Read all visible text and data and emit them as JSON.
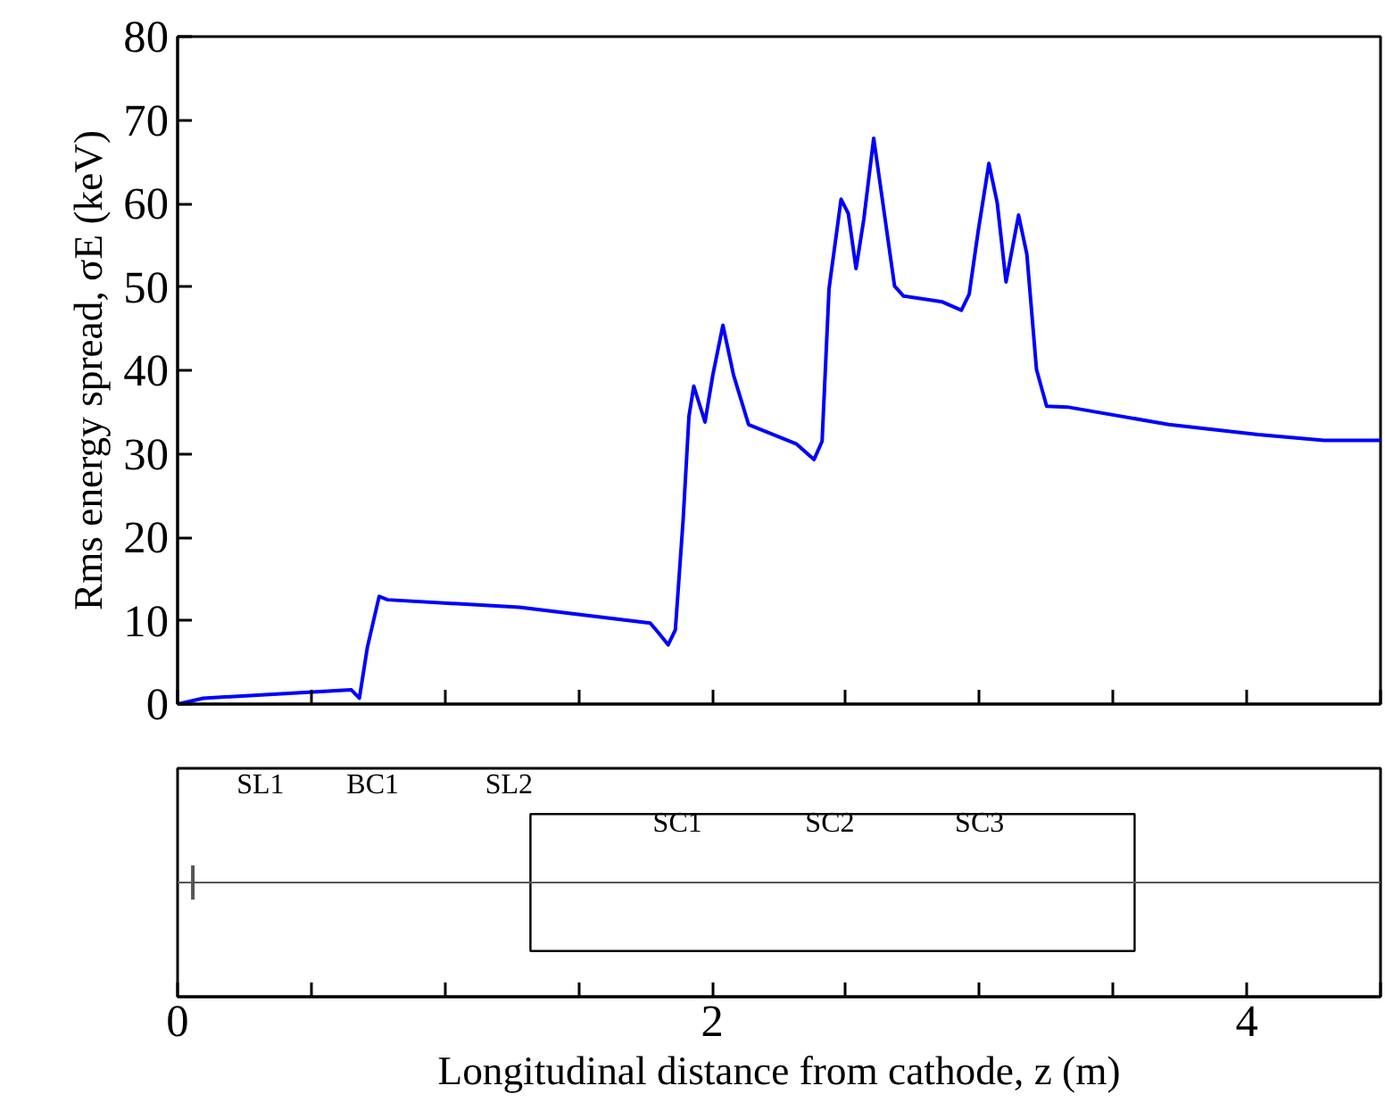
{
  "chart_data": [
    {
      "type": "line",
      "ylabel": "Rms energy spread, σE (keV)",
      "xlabel": "Longitudinal distance from cathode, z (m)",
      "xlim": [
        0,
        4.5
      ],
      "ylim": [
        0,
        80
      ],
      "xticks": [
        0,
        {
          "value": 0.5,
          "label": null
        },
        {
          "value": 1,
          "label": null
        },
        {
          "value": 1.5,
          "label": null
        },
        2,
        {
          "value": 2.5,
          "label": null
        },
        {
          "value": 3,
          "label": null
        },
        {
          "value": 3.5,
          "label": null
        },
        4,
        {
          "value": 4.5,
          "label": null
        }
      ],
      "yticks": [
        0,
        10,
        20,
        30,
        40,
        50,
        60,
        70,
        80
      ],
      "series": [
        {
          "color": "#0000ff",
          "x": [
            0,
            0.096,
            0.65,
            0.68,
            0.71,
            0.754,
            0.786,
            1.278,
            1.768,
            1.8,
            1.835,
            1.862,
            1.891,
            1.913,
            1.931,
            1.973,
            2.002,
            2.04,
            2.08,
            2.136,
            2.314,
            2.381,
            2.411,
            2.437,
            2.482,
            2.509,
            2.538,
            2.567,
            2.604,
            2.638,
            2.682,
            2.716,
            2.861,
            2.932,
            2.961,
            2.995,
            3.035,
            3.066,
            3.099,
            3.146,
            3.177,
            3.213,
            3.251,
            3.329,
            3.708,
            4.042,
            4.288,
            4.5
          ],
          "values": [
            0,
            0.7,
            1.7,
            0.7,
            6.8,
            12.9,
            12.5,
            11.6,
            9.7,
            8.5,
            7.1,
            8.9,
            22.0,
            34.5,
            38.1,
            33.8,
            39.4,
            45.4,
            39.4,
            33.5,
            31.2,
            29.3,
            31.5,
            49.8,
            60.5,
            58.8,
            52.2,
            58.1,
            67.8,
            60.1,
            50.1,
            48.9,
            48.2,
            47.2,
            49.1,
            56.7,
            64.8,
            60.1,
            50.6,
            58.6,
            53.9,
            40.1,
            35.7,
            35.6,
            33.5,
            32.3,
            31.6,
            31.6
          ]
        }
      ]
    },
    {
      "type": "other",
      "annotations": [
        "SL1",
        "BC1",
        "SL2",
        "SC1",
        "SC2",
        "SC3"
      ]
    }
  ]
}
